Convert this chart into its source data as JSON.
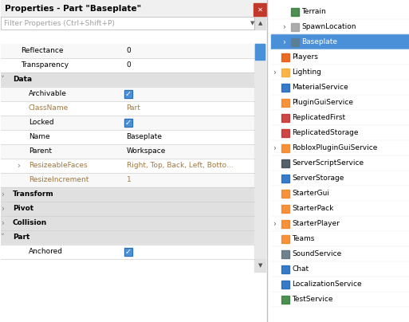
{
  "fig_width": 5.13,
  "fig_height": 4.04,
  "dpi": 100,
  "bg_color": "#ffffff",
  "left_panel": {
    "title": "Properties - Part \"Baseplate\"",
    "filter_text": "Filter Properties (Ctrl+Shift+P)",
    "close_btn_color": "#c0392b",
    "header_bg": "#f0f0f0",
    "section_bg": "#e0e0e0",
    "row_bg_alt": "#ffffff",
    "row_bg": "#f8f8f8",
    "scrollbar_color": "#4a90d9",
    "rows": [
      {
        "label": "Reflectance",
        "value": "0",
        "indent": 2,
        "type": "normal"
      },
      {
        "label": "Transparency",
        "value": "0",
        "indent": 2,
        "type": "normal"
      },
      {
        "label": "Data",
        "value": "",
        "indent": 1,
        "type": "section",
        "arrow": "down"
      },
      {
        "label": "Archivable",
        "value": "checkbox_checked",
        "indent": 3,
        "type": "normal"
      },
      {
        "label": "ClassName",
        "value": "Part",
        "indent": 3,
        "type": "gray_label"
      },
      {
        "label": "Locked",
        "value": "checkbox_checked",
        "indent": 3,
        "type": "normal"
      },
      {
        "label": "Name",
        "value": "Baseplate",
        "indent": 3,
        "type": "normal"
      },
      {
        "label": "Parent",
        "value": "Workspace",
        "indent": 3,
        "type": "normal"
      },
      {
        "label": "ResizeableFaces",
        "value": "Right, Top, Back, Left, Botto...",
        "indent": 3,
        "type": "gray_label",
        "arrow": "right"
      },
      {
        "label": "ResizeIncrement",
        "value": "1",
        "indent": 3,
        "type": "gray_label"
      },
      {
        "label": "Transform",
        "value": "",
        "indent": 1,
        "type": "section",
        "arrow": "right"
      },
      {
        "label": "Pivot",
        "value": "",
        "indent": 1,
        "type": "section",
        "arrow": "right"
      },
      {
        "label": "Collision",
        "value": "",
        "indent": 1,
        "type": "section",
        "arrow": "right"
      },
      {
        "label": "Part",
        "value": "",
        "indent": 1,
        "type": "section",
        "arrow": "down"
      },
      {
        "label": "Anchored",
        "value": "checkbox_checked",
        "indent": 3,
        "type": "normal"
      }
    ]
  },
  "right_panel": {
    "bg_color": "#ffffff",
    "items": [
      {
        "label": "Terrain",
        "indent": 1,
        "selected": false,
        "has_arrow": false,
        "icon_color": "#2e7d32"
      },
      {
        "label": "SpawnLocation",
        "indent": 1,
        "selected": false,
        "has_arrow": true,
        "icon_color": "#9e9e9e"
      },
      {
        "label": "Baseplate",
        "indent": 1,
        "selected": true,
        "has_arrow": true,
        "icon_color": "#607d8b"
      },
      {
        "label": "Players",
        "indent": 0,
        "selected": false,
        "has_arrow": false,
        "icon_color": "#e65100"
      },
      {
        "label": "Lighting",
        "indent": 0,
        "selected": false,
        "has_arrow": true,
        "icon_color": "#f9a825"
      },
      {
        "label": "MaterialService",
        "indent": 0,
        "selected": false,
        "has_arrow": false,
        "icon_color": "#1565c0"
      },
      {
        "label": "PluginGuiService",
        "indent": 0,
        "selected": false,
        "has_arrow": false,
        "icon_color": "#f57f17"
      },
      {
        "label": "ReplicatedFirst",
        "indent": 0,
        "selected": false,
        "has_arrow": false,
        "icon_color": "#c62828"
      },
      {
        "label": "ReplicatedStorage",
        "indent": 0,
        "selected": false,
        "has_arrow": false,
        "icon_color": "#c62828"
      },
      {
        "label": "RobloxPluginGuiService",
        "indent": 0,
        "selected": false,
        "has_arrow": true,
        "icon_color": "#f57f17"
      },
      {
        "label": "ServerScriptService",
        "indent": 0,
        "selected": false,
        "has_arrow": false,
        "icon_color": "#37474f"
      },
      {
        "label": "ServerStorage",
        "indent": 0,
        "selected": false,
        "has_arrow": false,
        "icon_color": "#1565c0"
      },
      {
        "label": "StarterGui",
        "indent": 0,
        "selected": false,
        "has_arrow": false,
        "icon_color": "#f57f17"
      },
      {
        "label": "StarterPack",
        "indent": 0,
        "selected": false,
        "has_arrow": false,
        "icon_color": "#f57f17"
      },
      {
        "label": "StarterPlayer",
        "indent": 0,
        "selected": false,
        "has_arrow": true,
        "icon_color": "#f57f17"
      },
      {
        "label": "Teams",
        "indent": 0,
        "selected": false,
        "has_arrow": false,
        "icon_color": "#f57f17"
      },
      {
        "label": "SoundService",
        "indent": 0,
        "selected": false,
        "has_arrow": false,
        "icon_color": "#546e7a"
      },
      {
        "label": "Chat",
        "indent": 0,
        "selected": false,
        "has_arrow": false,
        "icon_color": "#1565c0"
      },
      {
        "label": "LocalizationService",
        "indent": 0,
        "selected": false,
        "has_arrow": false,
        "icon_color": "#1565c0"
      },
      {
        "label": "TestService",
        "indent": 0,
        "selected": false,
        "has_arrow": false,
        "icon_color": "#2e7d32"
      }
    ]
  }
}
